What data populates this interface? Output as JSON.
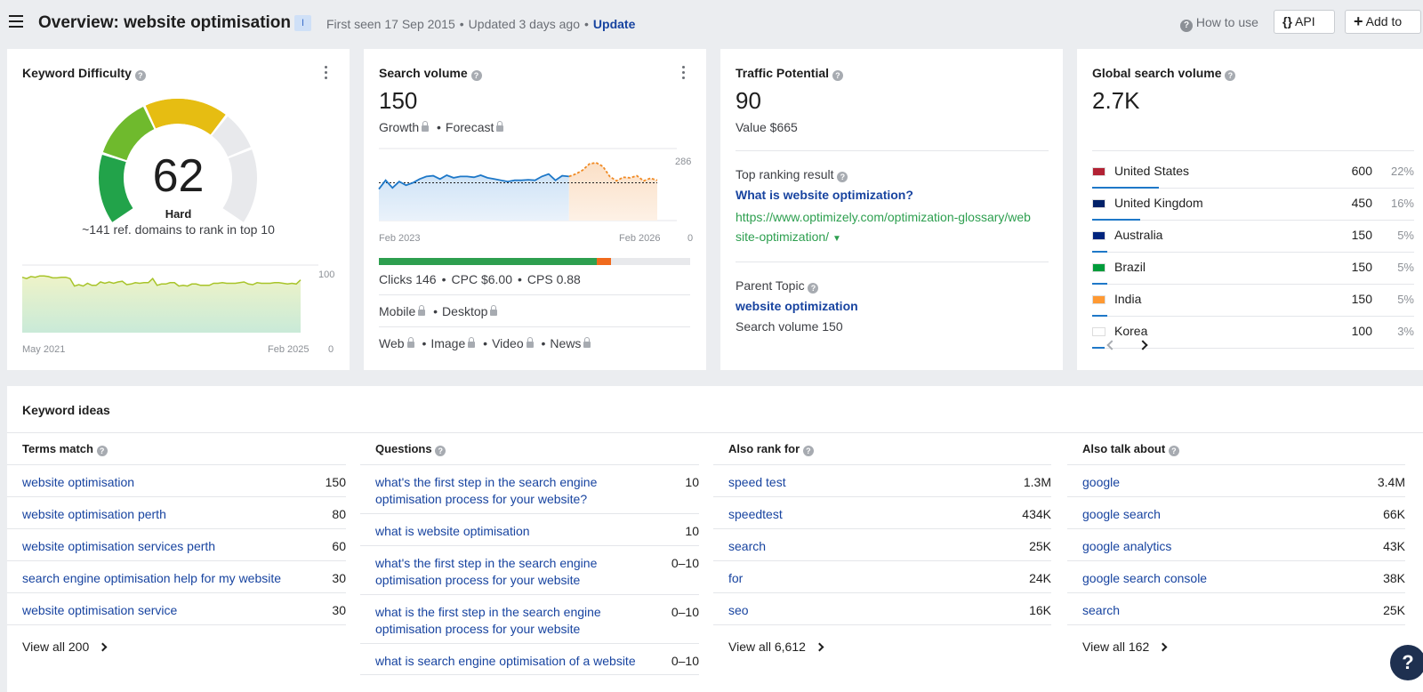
{
  "header": {
    "title": "Overview: website optimisation",
    "badge": "I",
    "first_seen": "First seen 17 Sep 2015",
    "updated": "Updated 3 days ago",
    "update_link": "Update",
    "how_to_use": "How to use",
    "api_label": "API",
    "add_to_label": "Add to"
  },
  "kd_card": {
    "title": "Keyword Difficulty",
    "score": "62",
    "level": "Hard",
    "description": "~141 ref. domains to rank in top 10",
    "chart": {
      "x_start": "May 2021",
      "x_end": "Feb 2025",
      "y_max": "100",
      "y_min": "0",
      "values": [
        82,
        80,
        83,
        82,
        84,
        84,
        83,
        81,
        81,
        82,
        82,
        80,
        69,
        71,
        69,
        73,
        70,
        70,
        75,
        73,
        75,
        73,
        75,
        76,
        71,
        72,
        74,
        73,
        74,
        74,
        80,
        70,
        72,
        72,
        74,
        74,
        69,
        70,
        69,
        72,
        72,
        70,
        70,
        70,
        73,
        73,
        74,
        73,
        73,
        73,
        74,
        75,
        72,
        71,
        74,
        73,
        73,
        73,
        74,
        74,
        73,
        72,
        73,
        72,
        78
      ]
    }
  },
  "sv_card": {
    "title": "Search volume",
    "value": "150",
    "growth": "Growth",
    "forecast": "Forecast",
    "chart": {
      "x_start": "Feb 2023",
      "x_end": "Feb 2026",
      "y_max": "286",
      "y_min": "0",
      "actual": [
        125,
        160,
        130,
        155,
        140,
        150,
        165,
        175,
        178,
        165,
        180,
        170,
        175,
        175,
        172,
        180,
        170,
        165,
        160,
        155,
        160,
        160,
        162,
        160,
        175,
        185,
        160,
        178,
        175
      ],
      "forecast": [
        185,
        200,
        225,
        230,
        215,
        175,
        158,
        172,
        170,
        178,
        158,
        168,
        160
      ]
    },
    "bar": {
      "clicks_pct": 70,
      "paid_pct": 1.5
    },
    "clicks": "Clicks 146",
    "cpc": "CPC $6.00",
    "cps": "CPS 0.88",
    "mobile": "Mobile",
    "desktop": "Desktop",
    "web": "Web",
    "image": "Image",
    "video": "Video",
    "news": "News",
    "colors": {
      "organic": "#2d9f4f",
      "paid": "#f06a1c",
      "actual_line": "#1e78c8",
      "forecast_line": "#f08a24"
    }
  },
  "tp_card": {
    "title": "Traffic Potential",
    "value": "90",
    "value_usd": "Value $665",
    "top_result_label": "Top ranking result",
    "top_result_title": "What is website optimization?",
    "top_result_url_1": "https://www.optimizely.com/optimization-glossary/web",
    "top_result_url_2": "site-optimization/",
    "parent_topic_label": "Parent Topic",
    "parent_topic": "website optimization",
    "parent_volume": "Search volume 150"
  },
  "gv_card": {
    "title": "Global search volume",
    "value": "2.7K",
    "rows": [
      {
        "country": "United States",
        "volume": "600",
        "pct": "22%",
        "share": 22
      },
      {
        "country": "United Kingdom",
        "volume": "450",
        "pct": "16%",
        "share": 16
      },
      {
        "country": "Australia",
        "volume": "150",
        "pct": "5%",
        "share": 5
      },
      {
        "country": "Brazil",
        "volume": "150",
        "pct": "5%",
        "share": 5
      },
      {
        "country": "India",
        "volume": "150",
        "pct": "5%",
        "share": 5
      },
      {
        "country": "Korea",
        "volume": "100",
        "pct": "3%",
        "share": 3
      }
    ]
  },
  "keyword_ideas": {
    "title": "Keyword ideas",
    "terms_match": {
      "title": "Terms match",
      "rows": [
        {
          "kw": "website optimisation",
          "vol": "150"
        },
        {
          "kw": "website optimisation perth",
          "vol": "80"
        },
        {
          "kw": "website optimisation services perth",
          "vol": "60"
        },
        {
          "kw": "search engine optimisation help for my website",
          "vol": "30"
        },
        {
          "kw": "website optimisation service",
          "vol": "30"
        }
      ],
      "view_all": "View all 200"
    },
    "questions": {
      "title": "Questions",
      "rows": [
        {
          "kw": "what's the first step in the search engine optimisation process for your website?",
          "vol": "10"
        },
        {
          "kw": "what is website optimisation",
          "vol": "10"
        },
        {
          "kw": "what's the first step in the search engine optimisation process for your website",
          "vol": "0–10"
        },
        {
          "kw": "what is the first step in the search engine optimisation process for your website",
          "vol": "0–10"
        },
        {
          "kw": "what is search engine optimisation of a website",
          "vol": "0–10"
        }
      ]
    },
    "also_rank_for": {
      "title": "Also rank for",
      "rows": [
        {
          "kw": "speed test",
          "vol": "1.3M"
        },
        {
          "kw": "speedtest",
          "vol": "434K"
        },
        {
          "kw": "search",
          "vol": "25K"
        },
        {
          "kw": "for",
          "vol": "24K"
        },
        {
          "kw": "seo",
          "vol": "16K"
        }
      ],
      "view_all": "View all 6,612"
    },
    "also_talk_about": {
      "title": "Also talk about",
      "rows": [
        {
          "kw": "google",
          "vol": "3.4M"
        },
        {
          "kw": "google search",
          "vol": "66K"
        },
        {
          "kw": "google analytics",
          "vol": "43K"
        },
        {
          "kw": "google search console",
          "vol": "38K"
        },
        {
          "kw": "search",
          "vol": "25K"
        }
      ],
      "view_all": "View all 162"
    }
  },
  "help_button": "?"
}
